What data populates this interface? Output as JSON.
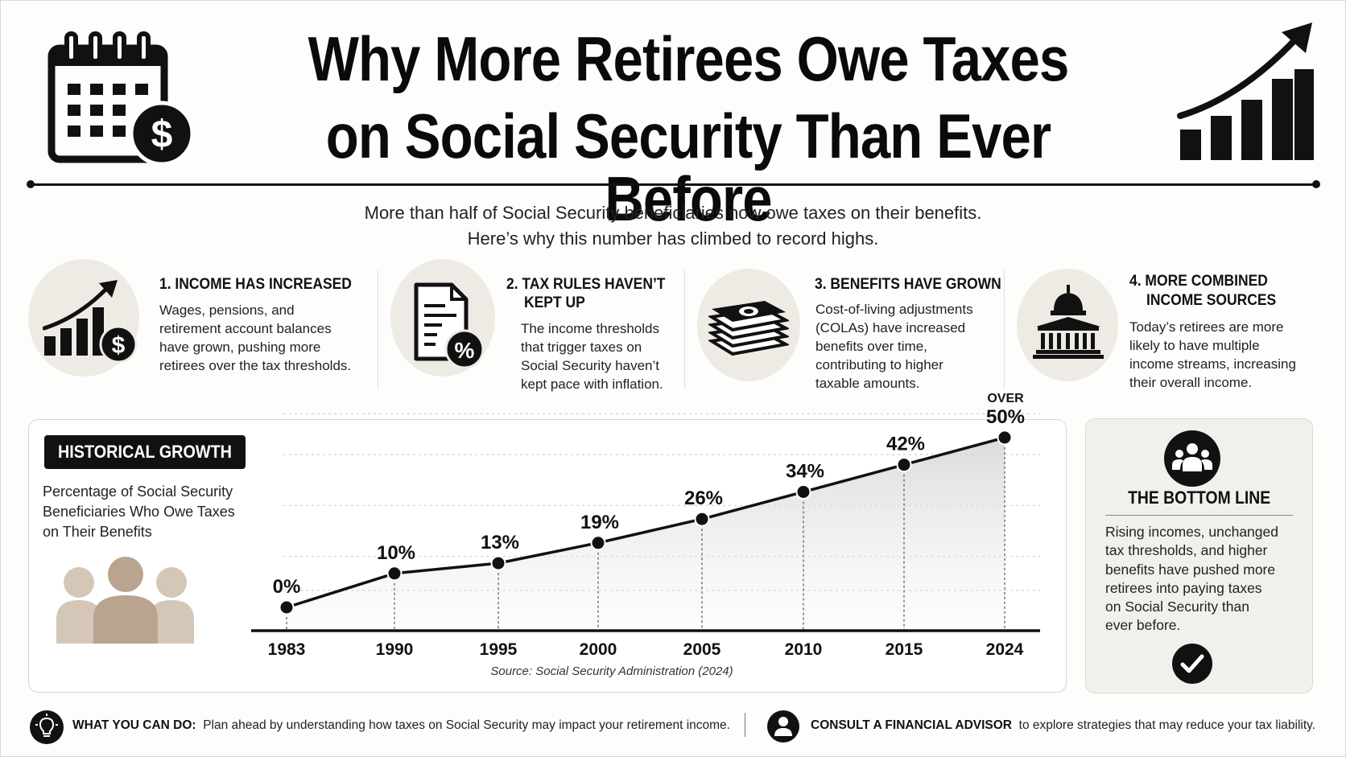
{
  "header": {
    "title_line1": "Why More Retirees Owe Taxes",
    "title_line2": "on Social Security Than Ever Before",
    "calendar_icon": "calendar-dollar-icon",
    "growth_icon": "bar-chart-arrow-icon"
  },
  "intro": {
    "line1": "More than half of Social Security beneficiaries now owe taxes on their benefits.",
    "line2": "Here’s why this number has climbed to record highs."
  },
  "reasons": [
    {
      "icon": "income-growth-dollar-icon",
      "heading": "1. INCOME HAS INCREASED",
      "body": [
        "Wages, pensions, and",
        "retirement account balances",
        "have grown, pushing more",
        "retirees over the tax thresholds."
      ]
    },
    {
      "icon": "tax-document-percent-icon",
      "heading_line1": "2. TAX RULES HAVEN’T",
      "heading_line2": "KEPT UP",
      "body": [
        "The income thresholds",
        "that trigger taxes on",
        "Social Security haven’t",
        "kept pace with inflation."
      ]
    },
    {
      "icon": "money-stack-icon",
      "heading": "3. BENEFITS HAVE GROWN",
      "body": [
        "Cost-of-living adjustments",
        "(COLAs) have increased",
        "benefits over time,",
        "contributing to higher",
        "taxable amounts."
      ]
    },
    {
      "icon": "capitol-building-icon",
      "heading_line1": "4. MORE COMBINED",
      "heading_line2": "INCOME SOURCES",
      "body": [
        "Today’s retirees are more",
        "likely to have multiple",
        "income streams, increasing",
        "their overall income."
      ]
    }
  ],
  "history": {
    "badge": "HISTORICAL GROWTH",
    "description": [
      "Percentage of Social Security",
      "Beneficiaries Who Owe Taxes",
      "on Their Benefits"
    ],
    "people_icon": "people-group-icon",
    "source": "Source: Social Security Administration (2024)"
  },
  "chart_data": {
    "type": "area",
    "x": [
      "1983",
      "1990",
      "1995",
      "2000",
      "2005",
      "2010",
      "2015",
      "2024"
    ],
    "values": [
      0,
      10,
      13,
      19,
      26,
      34,
      42,
      50
    ],
    "data_labels": [
      "0%",
      "10%",
      "13%",
      "19%",
      "26%",
      "34%",
      "42%",
      "50%"
    ],
    "label_prefix_last": "OVER",
    "ylim": [
      0,
      54
    ],
    "grid": "horizontal-dashed",
    "xlabel": "",
    "ylabel": ""
  },
  "bottom_line": {
    "icon": "people-circle-icon",
    "title": "THE BOTTOM LINE",
    "body": [
      "Rising incomes, unchanged",
      "tax thresholds, and higher",
      "benefits have pushed more",
      "retirees into paying taxes",
      "on Social Security than",
      "ever before."
    ],
    "check_icon": "check-circle-icon"
  },
  "footer": {
    "left_icon": "lightbulb-icon",
    "left_label": "WHAT YOU CAN DO:",
    "left_text": "Plan ahead by understanding how taxes on Social Security may impact your retirement income.",
    "right_icon": "person-icon",
    "right_label": "CONSULT A FINANCIAL ADVISOR",
    "right_text": "to explore strategies that may reduce your tax liability."
  },
  "colors": {
    "ink": "#111111",
    "circle_bg": "#eeebe4",
    "people_light": "#d4c7b8",
    "people_dark": "#b8a48f",
    "panel_bg": "#f2f0ec"
  }
}
